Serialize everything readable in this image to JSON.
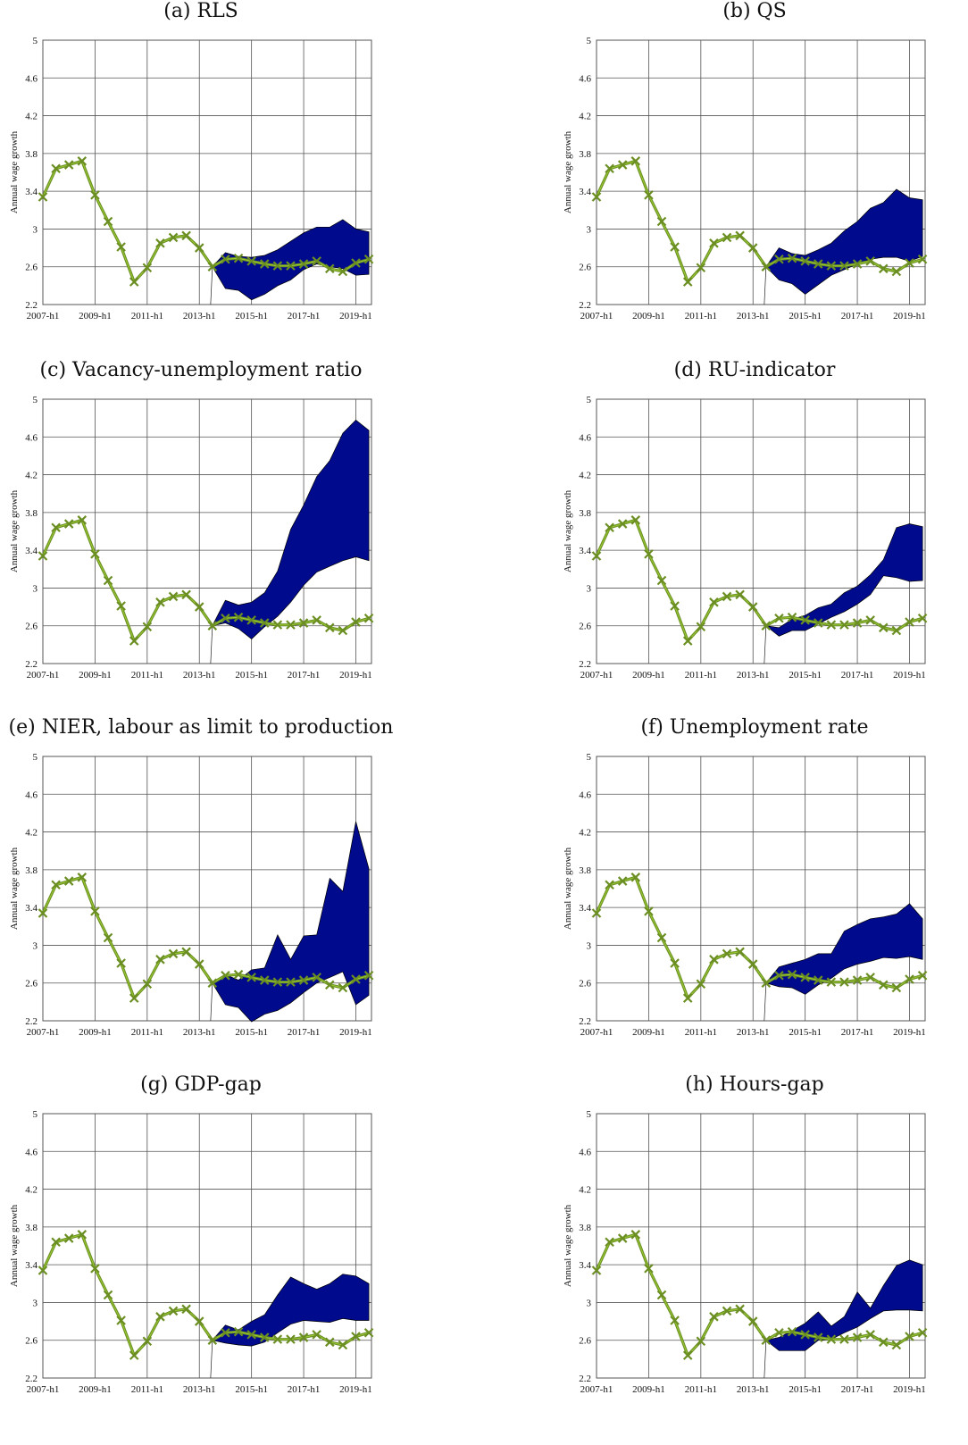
{
  "common": {
    "ylabel": "Annual wage growth",
    "yticks": [
      "2.2",
      "2.6",
      "3",
      "3.4",
      "3.8",
      "4.2",
      "4.6",
      "5"
    ],
    "xticks": [
      "2007-h1",
      "2009-h1",
      "2011-h1",
      "2013-h1",
      "2015-h1",
      "2017-h1",
      "2019-h1"
    ],
    "colors": {
      "band": "#000a8c",
      "line": "#6b8e23",
      "line_fill": "#9acd32",
      "grid": "#555555"
    }
  },
  "chart_data": [
    {
      "type": "line",
      "title": "(a) RLS",
      "ylabel": "Annual wage growth",
      "ylim": [
        2.2,
        5
      ],
      "x": [
        "2007-h1",
        "2007-h2",
        "2008-h1",
        "2008-h2",
        "2009-h1",
        "2009-h2",
        "2010-h1",
        "2010-h2",
        "2011-h1",
        "2011-h2",
        "2012-h1",
        "2012-h2",
        "2013-h1",
        "2013-h2",
        "2014-h1",
        "2014-h2",
        "2015-h1",
        "2015-h2",
        "2016-h1",
        "2016-h2",
        "2017-h1",
        "2017-h2",
        "2018-h1",
        "2018-h2",
        "2019-h1",
        "2019-h2"
      ],
      "series": [
        {
          "values": [
            3.34,
            3.64,
            3.68,
            3.72,
            3.36,
            3.08,
            2.81,
            2.44,
            2.59,
            2.85,
            2.91,
            2.93,
            2.8,
            2.6,
            2.68,
            2.69,
            2.66,
            2.63,
            2.61,
            2.61,
            2.63,
            2.66,
            2.58,
            2.55,
            2.64,
            2.68
          ]
        }
      ],
      "band": {
        "x_start_index": 13,
        "upper": [
          2.6,
          2.75,
          2.71,
          2.7,
          2.72,
          2.78,
          2.87,
          2.96,
          3.02,
          3.02,
          3.1,
          3.0,
          2.97
        ],
        "lower": [
          2.6,
          2.37,
          2.35,
          2.25,
          2.31,
          2.4,
          2.46,
          2.57,
          2.63,
          2.6,
          2.58,
          2.51,
          2.52
        ]
      }
    },
    {
      "type": "line",
      "title": "(b) QS",
      "ylabel": "Annual wage growth",
      "ylim": [
        2.2,
        5
      ],
      "x": [
        "2007-h1",
        "2007-h2",
        "2008-h1",
        "2008-h2",
        "2009-h1",
        "2009-h2",
        "2010-h1",
        "2010-h2",
        "2011-h1",
        "2011-h2",
        "2012-h1",
        "2012-h2",
        "2013-h1",
        "2013-h2",
        "2014-h1",
        "2014-h2",
        "2015-h1",
        "2015-h2",
        "2016-h1",
        "2016-h2",
        "2017-h1",
        "2017-h2",
        "2018-h1",
        "2018-h2",
        "2019-h1",
        "2019-h2"
      ],
      "series": [
        {
          "values": [
            3.34,
            3.64,
            3.68,
            3.72,
            3.36,
            3.08,
            2.81,
            2.44,
            2.59,
            2.85,
            2.91,
            2.93,
            2.8,
            2.6,
            2.68,
            2.69,
            2.66,
            2.63,
            2.61,
            2.61,
            2.63,
            2.66,
            2.58,
            2.55,
            2.64,
            2.68
          ]
        }
      ],
      "band": {
        "x_start_index": 13,
        "upper": [
          2.6,
          2.8,
          2.74,
          2.72,
          2.78,
          2.85,
          2.98,
          3.08,
          3.22,
          3.28,
          3.42,
          3.33,
          3.31
        ],
        "lower": [
          2.6,
          2.46,
          2.42,
          2.31,
          2.41,
          2.51,
          2.57,
          2.63,
          2.68,
          2.7,
          2.7,
          2.66,
          2.71
        ]
      }
    },
    {
      "type": "line",
      "title": "(c) Vacancy-unemployment ratio",
      "ylabel": "Annual wage growth",
      "ylim": [
        2.2,
        5
      ],
      "x": [
        "2007-h1",
        "2007-h2",
        "2008-h1",
        "2008-h2",
        "2009-h1",
        "2009-h2",
        "2010-h1",
        "2010-h2",
        "2011-h1",
        "2011-h2",
        "2012-h1",
        "2012-h2",
        "2013-h1",
        "2013-h2",
        "2014-h1",
        "2014-h2",
        "2015-h1",
        "2015-h2",
        "2016-h1",
        "2016-h2",
        "2017-h1",
        "2017-h2",
        "2018-h1",
        "2018-h2",
        "2019-h1",
        "2019-h2"
      ],
      "series": [
        {
          "values": [
            3.34,
            3.64,
            3.68,
            3.72,
            3.36,
            3.08,
            2.81,
            2.44,
            2.59,
            2.85,
            2.91,
            2.93,
            2.8,
            2.6,
            2.68,
            2.69,
            2.66,
            2.63,
            2.61,
            2.61,
            2.63,
            2.66,
            2.58,
            2.55,
            2.64,
            2.68
          ]
        }
      ],
      "band": {
        "x_start_index": 13,
        "upper": [
          2.6,
          2.87,
          2.82,
          2.85,
          2.95,
          3.18,
          3.62,
          3.88,
          4.18,
          4.35,
          4.64,
          4.78,
          4.67
        ],
        "lower": [
          2.6,
          2.63,
          2.57,
          2.46,
          2.59,
          2.7,
          2.85,
          3.03,
          3.17,
          3.23,
          3.29,
          3.33,
          3.29
        ]
      }
    },
    {
      "type": "line",
      "title": "(d) RU-indicator",
      "ylabel": "Annual wage growth",
      "ylim": [
        2.2,
        5
      ],
      "x": [
        "2007-h1",
        "2007-h2",
        "2008-h1",
        "2008-h2",
        "2009-h1",
        "2009-h2",
        "2010-h1",
        "2010-h2",
        "2011-h1",
        "2011-h2",
        "2012-h1",
        "2012-h2",
        "2013-h1",
        "2013-h2",
        "2014-h1",
        "2014-h2",
        "2015-h1",
        "2015-h2",
        "2016-h1",
        "2016-h2",
        "2017-h1",
        "2017-h2",
        "2018-h1",
        "2018-h2",
        "2019-h1",
        "2019-h2"
      ],
      "series": [
        {
          "values": [
            3.34,
            3.64,
            3.68,
            3.72,
            3.36,
            3.08,
            2.81,
            2.44,
            2.59,
            2.85,
            2.91,
            2.93,
            2.8,
            2.6,
            2.68,
            2.69,
            2.66,
            2.63,
            2.61,
            2.61,
            2.63,
            2.66,
            2.58,
            2.55,
            2.64,
            2.68
          ]
        }
      ],
      "band": {
        "x_start_index": 13,
        "upper": [
          2.6,
          2.58,
          2.67,
          2.71,
          2.79,
          2.83,
          2.95,
          3.02,
          3.14,
          3.3,
          3.64,
          3.68,
          3.65
        ],
        "lower": [
          2.6,
          2.49,
          2.55,
          2.55,
          2.62,
          2.69,
          2.75,
          2.83,
          2.93,
          3.13,
          3.11,
          3.07,
          3.08
        ]
      }
    },
    {
      "type": "line",
      "title": "(e) NIER, labour as limit to production",
      "ylabel": "Annual wage growth",
      "ylim": [
        2.2,
        5
      ],
      "x": [
        "2007-h1",
        "2007-h2",
        "2008-h1",
        "2008-h2",
        "2009-h1",
        "2009-h2",
        "2010-h1",
        "2010-h2",
        "2011-h1",
        "2011-h2",
        "2012-h1",
        "2012-h2",
        "2013-h1",
        "2013-h2",
        "2014-h1",
        "2014-h2",
        "2015-h1",
        "2015-h2",
        "2016-h1",
        "2016-h2",
        "2017-h1",
        "2017-h2",
        "2018-h1",
        "2018-h2",
        "2019-h1",
        "2019-h2"
      ],
      "series": [
        {
          "values": [
            3.34,
            3.64,
            3.68,
            3.72,
            3.36,
            3.08,
            2.81,
            2.44,
            2.59,
            2.85,
            2.91,
            2.93,
            2.8,
            2.6,
            2.68,
            2.69,
            2.66,
            2.63,
            2.61,
            2.61,
            2.63,
            2.66,
            2.58,
            2.55,
            2.64,
            2.68
          ]
        }
      ],
      "band": {
        "x_start_index": 13,
        "upper": [
          2.6,
          2.69,
          2.63,
          2.74,
          2.76,
          3.11,
          2.85,
          3.1,
          3.11,
          3.71,
          3.57,
          4.31,
          3.81
        ],
        "lower": [
          2.6,
          2.37,
          2.34,
          2.19,
          2.27,
          2.31,
          2.39,
          2.5,
          2.6,
          2.66,
          2.72,
          2.37,
          2.47
        ]
      }
    },
    {
      "type": "line",
      "title": "(f) Unemployment rate",
      "ylabel": "Annual wage growth",
      "ylim": [
        2.2,
        5
      ],
      "x": [
        "2007-h1",
        "2007-h2",
        "2008-h1",
        "2008-h2",
        "2009-h1",
        "2009-h2",
        "2010-h1",
        "2010-h2",
        "2011-h1",
        "2011-h2",
        "2012-h1",
        "2012-h2",
        "2013-h1",
        "2013-h2",
        "2014-h1",
        "2014-h2",
        "2015-h1",
        "2015-h2",
        "2016-h1",
        "2016-h2",
        "2017-h1",
        "2017-h2",
        "2018-h1",
        "2018-h2",
        "2019-h1",
        "2019-h2"
      ],
      "series": [
        {
          "values": [
            3.34,
            3.64,
            3.68,
            3.72,
            3.36,
            3.08,
            2.81,
            2.44,
            2.59,
            2.85,
            2.91,
            2.93,
            2.8,
            2.6,
            2.68,
            2.69,
            2.66,
            2.63,
            2.61,
            2.61,
            2.63,
            2.66,
            2.58,
            2.55,
            2.64,
            2.68
          ]
        }
      ],
      "band": {
        "x_start_index": 13,
        "upper": [
          2.6,
          2.77,
          2.81,
          2.85,
          2.91,
          2.91,
          3.15,
          3.22,
          3.28,
          3.3,
          3.33,
          3.44,
          3.28
        ],
        "lower": [
          2.6,
          2.56,
          2.55,
          2.48,
          2.58,
          2.65,
          2.75,
          2.8,
          2.83,
          2.87,
          2.86,
          2.88,
          2.85
        ]
      }
    },
    {
      "type": "line",
      "title": "(g) GDP-gap",
      "ylabel": "Annual wage growth",
      "ylim": [
        2.2,
        5
      ],
      "x": [
        "2007-h1",
        "2007-h2",
        "2008-h1",
        "2008-h2",
        "2009-h1",
        "2009-h2",
        "2010-h1",
        "2010-h2",
        "2011-h1",
        "2011-h2",
        "2012-h1",
        "2012-h2",
        "2013-h1",
        "2013-h2",
        "2014-h1",
        "2014-h2",
        "2015-h1",
        "2015-h2",
        "2016-h1",
        "2016-h2",
        "2017-h1",
        "2017-h2",
        "2018-h1",
        "2018-h2",
        "2019-h1",
        "2019-h2"
      ],
      "series": [
        {
          "values": [
            3.34,
            3.64,
            3.68,
            3.72,
            3.36,
            3.08,
            2.81,
            2.44,
            2.59,
            2.85,
            2.91,
            2.93,
            2.8,
            2.6,
            2.68,
            2.69,
            2.66,
            2.63,
            2.61,
            2.61,
            2.63,
            2.66,
            2.58,
            2.55,
            2.64,
            2.68
          ]
        }
      ],
      "band": {
        "x_start_index": 13,
        "upper": [
          2.6,
          2.76,
          2.71,
          2.8,
          2.87,
          3.08,
          3.27,
          3.2,
          3.14,
          3.2,
          3.3,
          3.28,
          3.2
        ],
        "lower": [
          2.6,
          2.57,
          2.55,
          2.54,
          2.58,
          2.68,
          2.77,
          2.81,
          2.8,
          2.79,
          2.83,
          2.81,
          2.81
        ]
      }
    },
    {
      "type": "line",
      "title": "(h) Hours-gap",
      "ylabel": "Annual wage growth",
      "ylim": [
        2.2,
        5
      ],
      "x": [
        "2007-h1",
        "2007-h2",
        "2008-h1",
        "2008-h2",
        "2009-h1",
        "2009-h2",
        "2010-h1",
        "2010-h2",
        "2011-h1",
        "2011-h2",
        "2012-h1",
        "2012-h2",
        "2013-h1",
        "2013-h2",
        "2014-h1",
        "2014-h2",
        "2015-h1",
        "2015-h2",
        "2016-h1",
        "2016-h2",
        "2017-h1",
        "2017-h2",
        "2018-h1",
        "2018-h2",
        "2019-h1",
        "2019-h2"
      ],
      "series": [
        {
          "values": [
            3.34,
            3.64,
            3.68,
            3.72,
            3.36,
            3.08,
            2.81,
            2.44,
            2.59,
            2.85,
            2.91,
            2.93,
            2.8,
            2.6,
            2.68,
            2.69,
            2.66,
            2.63,
            2.61,
            2.61,
            2.63,
            2.66,
            2.58,
            2.55,
            2.64,
            2.68
          ]
        }
      ],
      "band": {
        "x_start_index": 13,
        "upper": [
          2.6,
          2.63,
          2.7,
          2.78,
          2.9,
          2.75,
          2.85,
          3.11,
          2.94,
          3.18,
          3.39,
          3.45,
          3.4
        ],
        "lower": [
          2.6,
          2.49,
          2.49,
          2.49,
          2.6,
          2.61,
          2.68,
          2.74,
          2.83,
          2.91,
          2.92,
          2.92,
          2.91
        ]
      }
    }
  ]
}
